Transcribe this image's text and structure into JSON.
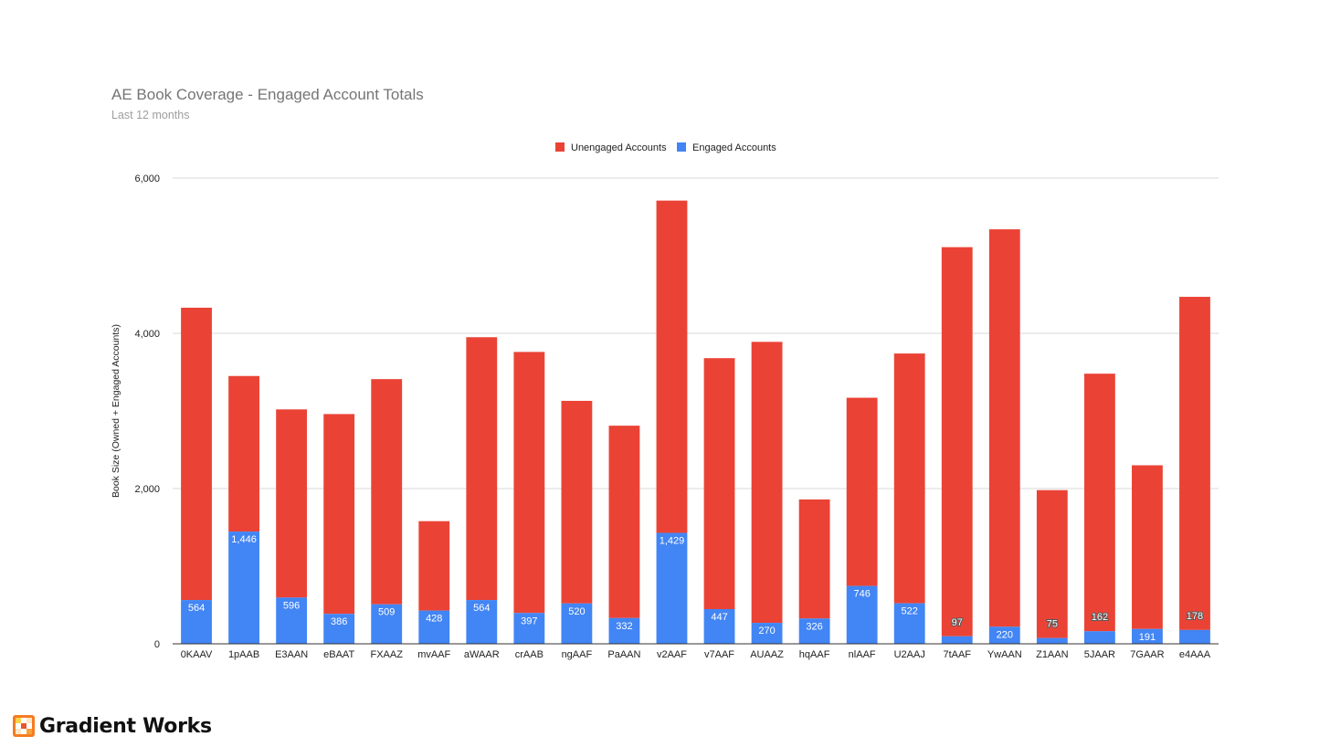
{
  "chart_data": {
    "type": "bar",
    "stacked": true,
    "title": "AE Book Coverage - Engaged Account Totals",
    "subtitle": "Last 12 months",
    "ylabel": "Book Size (Owned + Engaged Accounts)",
    "xlabel": "",
    "ylim": [
      0,
      6000
    ],
    "yticks": [
      0,
      2000,
      4000,
      6000
    ],
    "ytick_labels": [
      "0",
      "2,000",
      "4,000",
      "6,000"
    ],
    "grid": true,
    "legend": "top-center",
    "categories": [
      "0KAAV",
      "1pAAB",
      "E3AAN",
      "eBAAT",
      "FXAAZ",
      "mvAAF",
      "aWAAR",
      "crAAB",
      "ngAAF",
      "PaAAN",
      "v2AAF",
      "v7AAF",
      "AUAAZ",
      "hqAAF",
      "nlAAF",
      "U2AAJ",
      "7tAAF",
      "YwAAN",
      "Z1AAN",
      "5JAAR",
      "7GAAR",
      "e4AAA"
    ],
    "series": [
      {
        "name": "Engaged Accounts",
        "color": "#4285f4",
        "values": [
          564,
          1446,
          596,
          386,
          509,
          428,
          564,
          397,
          520,
          332,
          1429,
          447,
          270,
          326,
          746,
          522,
          97,
          220,
          75,
          162,
          191,
          178
        ],
        "labels": [
          "564",
          "1,446",
          "596",
          "386",
          "509",
          "428",
          "564",
          "397",
          "520",
          "332",
          "1,429",
          "447",
          "270",
          "326",
          "746",
          "522",
          "97",
          "220",
          "75",
          "162",
          "191",
          "178"
        ]
      },
      {
        "name": "Unengaged Accounts",
        "color": "#ea4335",
        "values": [
          3766,
          2004,
          2424,
          2574,
          2901,
          1152,
          3386,
          3363,
          2610,
          2478,
          4281,
          3233,
          3620,
          1534,
          2424,
          3218,
          5013,
          5120,
          1905,
          3318,
          2109,
          4292
        ]
      }
    ],
    "legend_entries": [
      {
        "label": "Unengaged Accounts",
        "color": "#ea4335"
      },
      {
        "label": "Engaged Accounts",
        "color": "#4285f4"
      }
    ]
  },
  "brand": {
    "name": "Gradient Works",
    "logo": "gradient-works-logo"
  }
}
